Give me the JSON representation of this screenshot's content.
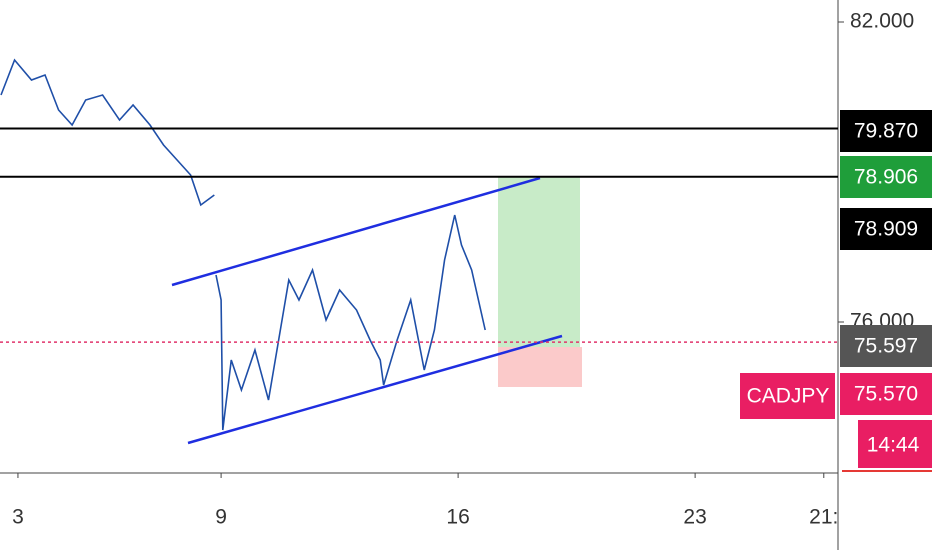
{
  "chart_data": {
    "type": "line",
    "x": [
      2.5,
      2.9,
      3.4,
      3.8,
      4.2,
      4.6,
      5.0,
      5.5,
      6.0,
      6.4,
      6.9,
      7.3,
      7.7,
      8.1,
      8.4,
      8.8,
      8.82,
      8.85,
      9.0,
      9.05,
      9.3,
      9.6,
      10.0,
      10.4,
      10.7,
      11.0,
      11.3,
      11.7,
      12.1,
      12.5,
      13.0,
      13.4,
      13.7,
      13.8,
      14.2,
      14.6,
      15.0,
      15.3,
      15.6,
      15.9,
      16.1,
      16.4,
      16.8
    ],
    "series": [
      {
        "name": "CADJPY",
        "color": "#1f4fa8",
        "values": [
          80.54,
          81.24,
          80.84,
          80.94,
          80.24,
          79.94,
          80.44,
          80.54,
          80.04,
          80.34,
          79.94,
          79.54,
          79.24,
          78.94,
          78.34,
          78.54,
          null,
          76.94,
          76.44,
          73.84,
          75.24,
          74.64,
          75.44,
          74.44,
          75.64,
          76.84,
          76.44,
          77.04,
          76.04,
          76.64,
          76.24,
          75.64,
          75.24,
          74.74,
          75.64,
          76.44,
          75.04,
          75.84,
          77.24,
          78.14,
          77.54,
          77.04,
          75.84
        ]
      }
    ],
    "xlim": [
      2.47,
      27.22
    ],
    "xticks": [
      {
        "value": 3,
        "label": "3"
      },
      {
        "value": 9,
        "label": "9"
      },
      {
        "value": 16,
        "label": "16"
      },
      {
        "value": 23,
        "label": "23"
      },
      {
        "value": 26.8,
        "label": "21:"
      }
    ],
    "ylim": [
      72.98,
      82.44
    ],
    "yticks": [
      {
        "value": 82,
        "label": "82.000"
      },
      {
        "value": 76,
        "label": "76.000"
      }
    ],
    "levels": [
      {
        "value": 79.87,
        "label": "79.870",
        "color": "#000000"
      },
      {
        "value": 78.906,
        "label": "78.906",
        "color": "#1f9e3a"
      },
      {
        "value": 78.909,
        "label": "78.909",
        "color": "#000000"
      },
      {
        "value": 75.597,
        "label": "75.597",
        "color": "#555555"
      },
      {
        "value": 75.57,
        "label": "75.570",
        "color": "#e91e63"
      }
    ],
    "countdown": "14:44"
  }
}
